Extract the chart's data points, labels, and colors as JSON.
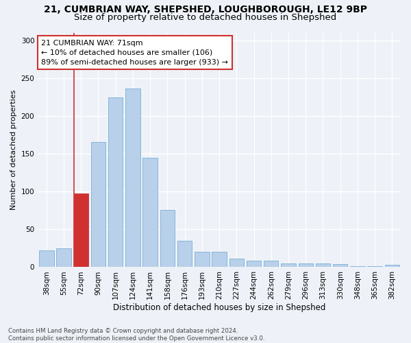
{
  "title1": "21, CUMBRIAN WAY, SHEPSHED, LOUGHBOROUGH, LE12 9BP",
  "title2": "Size of property relative to detached houses in Shepshed",
  "xlabel": "Distribution of detached houses by size in Shepshed",
  "ylabel": "Number of detached properties",
  "categories": [
    "38sqm",
    "55sqm",
    "72sqm",
    "90sqm",
    "107sqm",
    "124sqm",
    "141sqm",
    "158sqm",
    "176sqm",
    "193sqm",
    "210sqm",
    "227sqm",
    "244sqm",
    "262sqm",
    "279sqm",
    "296sqm",
    "313sqm",
    "330sqm",
    "348sqm",
    "365sqm",
    "382sqm"
  ],
  "values": [
    22,
    25,
    97,
    165,
    224,
    236,
    145,
    76,
    35,
    20,
    20,
    11,
    9,
    9,
    5,
    5,
    5,
    4,
    1,
    1,
    3
  ],
  "bar_color": "#b8d0ea",
  "bar_edge_color": "#7aafd4",
  "highlight_bar_index": 2,
  "highlight_color": "#d0302f",
  "highlight_edge_color": "#d0302f",
  "annotation_text": "21 CUMBRIAN WAY: 71sqm\n← 10% of detached houses are smaller (106)\n89% of semi-detached houses are larger (933) →",
  "annotation_box_facecolor": "white",
  "annotation_box_edgecolor": "#d0302f",
  "ylim": [
    0,
    310
  ],
  "yticks": [
    0,
    50,
    100,
    150,
    200,
    250,
    300
  ],
  "footnote": "Contains HM Land Registry data © Crown copyright and database right 2024.\nContains public sector information licensed under the Open Government Licence v3.0.",
  "background_color": "#eef2f8",
  "grid_color": "#ffffff",
  "title_fontsize": 10,
  "subtitle_fontsize": 9.5,
  "axis_label_fontsize": 8.5,
  "tick_fontsize": 7.5,
  "annotation_fontsize": 8,
  "ylabel_fontsize": 8
}
